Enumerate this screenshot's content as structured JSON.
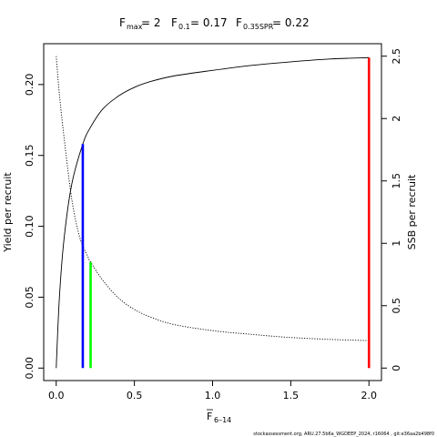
{
  "title": {
    "fmax_label": "F",
    "fmax_sub": "max",
    "fmax_value": "= 2",
    "f01_label": "F",
    "f01_sub": "0.1",
    "f01_value": "= 0.17",
    "fspr_label": "F",
    "fspr_sub": "0.35SPR",
    "fspr_value": "= 0.22"
  },
  "axes": {
    "x_label_main": "F",
    "x_label_sub": "6–14",
    "y_left_label": "Yield per recruit",
    "y_right_label": "SSB per recruit"
  },
  "credit": "stockassessment.org, ARU.27.5b6a_WGDEEP_2024, r16064 , git:e36aa2b498f0",
  "colors": {
    "fmax": "#ff0000",
    "f01": "#0000ff",
    "fspr": "#00ff00",
    "curve": "#000000"
  },
  "chart_data": {
    "type": "line",
    "x_ticks": [
      0,
      0.5,
      1,
      1.5,
      2
    ],
    "x_tick_labels": [
      "0.0",
      "0.5",
      "1.0",
      "1.5",
      "2.0"
    ],
    "y_left_ticks": [
      0,
      0.05,
      0.1,
      0.15,
      0.2
    ],
    "y_left_tick_labels": [
      "0.00",
      "0.05",
      "0.10",
      "0.15",
      "0.20"
    ],
    "y_right_ticks": [
      0,
      0.5,
      1,
      1.5,
      2,
      2.5
    ],
    "y_right_tick_labels": [
      "0",
      "0.5",
      "1",
      "1.5",
      "2",
      "2.5"
    ],
    "xlim": [
      -0.08,
      2.08
    ],
    "ylim_left": [
      -0.0088,
      0.2288
    ],
    "ylim_right": [
      -0.1,
      2.6
    ],
    "series": [
      {
        "axis": "left",
        "style": "solid",
        "x": [
          0,
          0.02,
          0.05,
          0.1,
          0.17,
          0.22,
          0.3,
          0.4,
          0.5,
          0.6,
          0.75,
          1.0,
          1.25,
          1.5,
          1.75,
          2.0
        ],
        "y": [
          0,
          0.049,
          0.091,
          0.13,
          0.158,
          0.17,
          0.183,
          0.192,
          0.198,
          0.202,
          0.206,
          0.21,
          0.2135,
          0.216,
          0.218,
          0.219
        ]
      },
      {
        "axis": "right",
        "style": "dotted",
        "x": [
          0,
          0.02,
          0.05,
          0.1,
          0.15,
          0.2,
          0.22,
          0.3,
          0.4,
          0.5,
          0.6,
          0.75,
          1.0,
          1.25,
          1.5,
          1.75,
          2.0
        ],
        "y": [
          2.5,
          2.2,
          1.85,
          1.35,
          1.05,
          0.9,
          0.85,
          0.7,
          0.56,
          0.47,
          0.41,
          0.35,
          0.3,
          0.27,
          0.245,
          0.23,
          0.22
        ]
      }
    ],
    "reference_lines": [
      {
        "key": "f01",
        "x": 0.17,
        "y_left_top": 0.158
      },
      {
        "key": "fspr",
        "x": 0.22,
        "y_right_top": 0.85
      },
      {
        "key": "fmax",
        "x": 2.0,
        "y_left_top": 0.219
      }
    ]
  }
}
